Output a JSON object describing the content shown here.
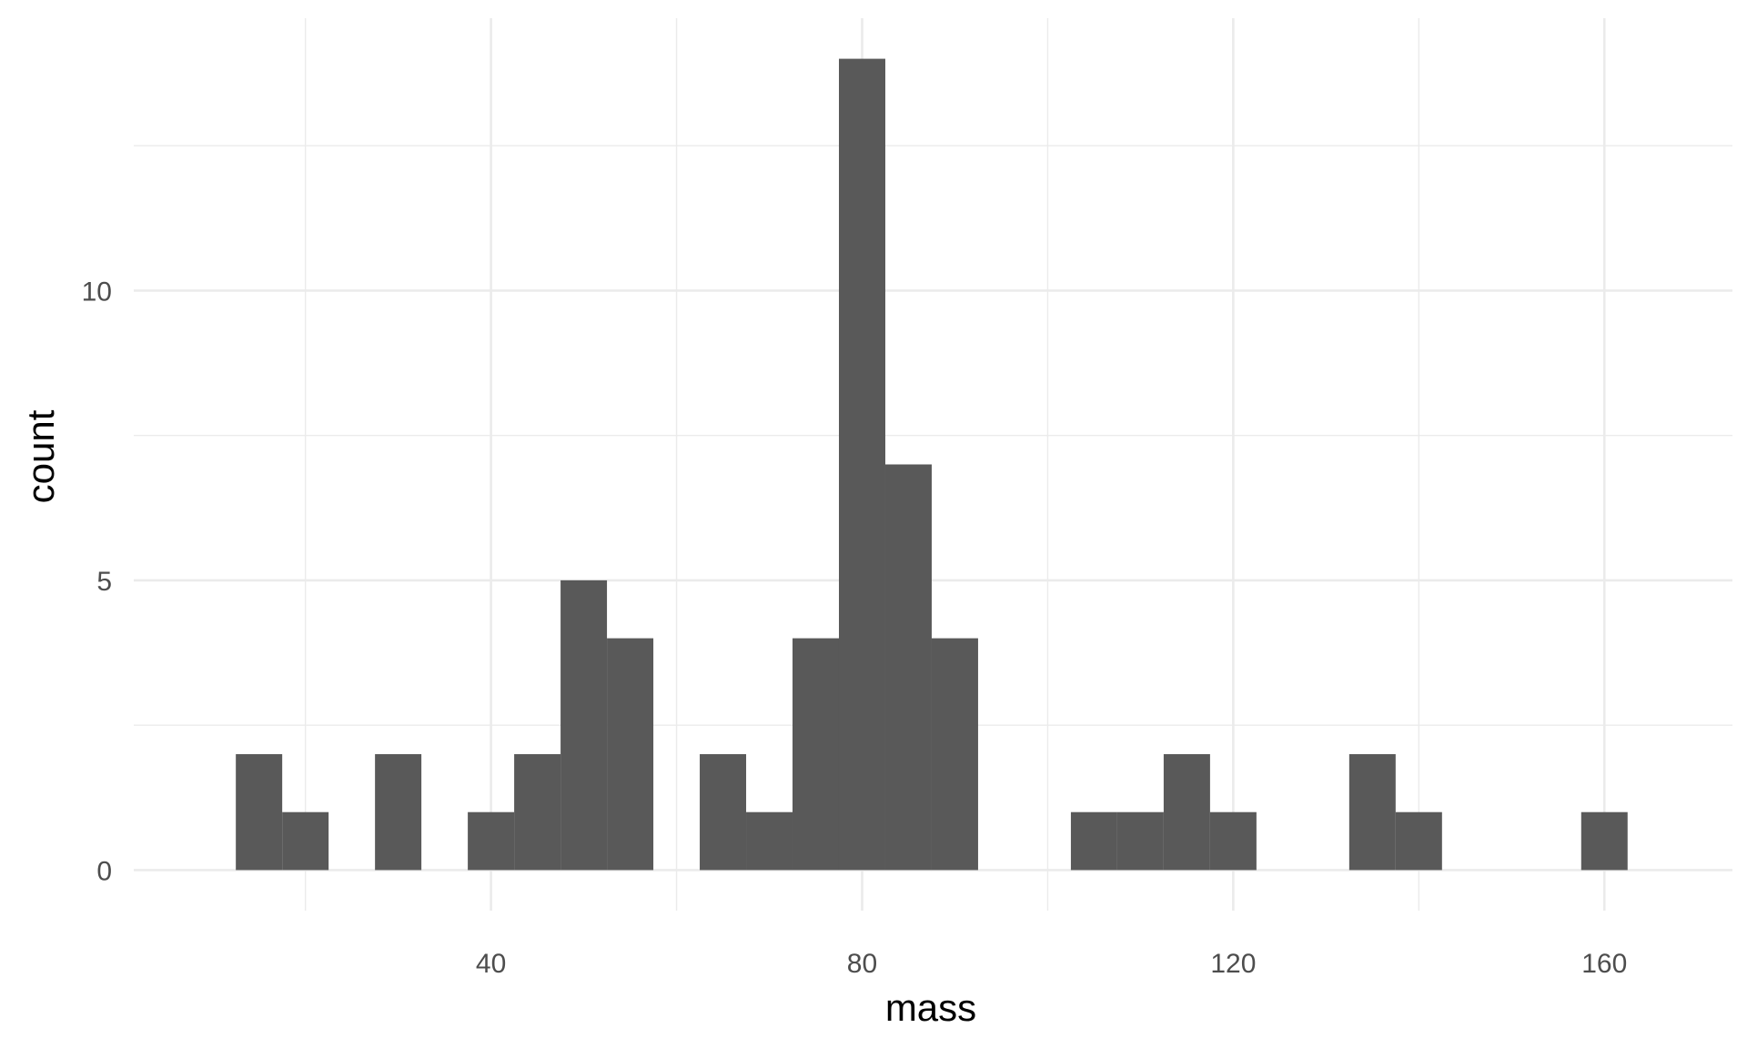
{
  "chart_data": {
    "type": "bar",
    "chart_kind": "histogram",
    "xlabel": "mass",
    "ylabel": "count",
    "x_ticks": [
      40,
      80,
      120,
      160
    ],
    "x_tick_labels": [
      "40",
      "80",
      "120",
      "160"
    ],
    "y_ticks": [
      0,
      5,
      10
    ],
    "y_tick_labels": [
      "0",
      "5",
      "10"
    ],
    "xlim": [
      1.5,
      173.8
    ],
    "ylim": [
      -0.7,
      14.7
    ],
    "bin_width": 5,
    "bins": [
      {
        "x0": 12.5,
        "x1": 17.5,
        "count": 2
      },
      {
        "x0": 17.5,
        "x1": 22.5,
        "count": 1
      },
      {
        "x0": 27.5,
        "x1": 32.5,
        "count": 2
      },
      {
        "x0": 37.5,
        "x1": 42.5,
        "count": 1
      },
      {
        "x0": 42.5,
        "x1": 47.5,
        "count": 2
      },
      {
        "x0": 47.5,
        "x1": 52.5,
        "count": 5
      },
      {
        "x0": 52.5,
        "x1": 57.5,
        "count": 4
      },
      {
        "x0": 62.5,
        "x1": 67.5,
        "count": 2
      },
      {
        "x0": 67.5,
        "x1": 72.5,
        "count": 1
      },
      {
        "x0": 72.5,
        "x1": 77.5,
        "count": 4
      },
      {
        "x0": 77.5,
        "x1": 82.5,
        "count": 14
      },
      {
        "x0": 82.5,
        "x1": 87.5,
        "count": 7
      },
      {
        "x0": 87.5,
        "x1": 92.5,
        "count": 4
      },
      {
        "x0": 102.5,
        "x1": 107.5,
        "count": 1
      },
      {
        "x0": 107.5,
        "x1": 112.5,
        "count": 1
      },
      {
        "x0": 112.5,
        "x1": 117.5,
        "count": 2
      },
      {
        "x0": 117.5,
        "x1": 122.5,
        "count": 1
      },
      {
        "x0": 132.5,
        "x1": 137.5,
        "count": 2
      },
      {
        "x0": 137.5,
        "x1": 142.5,
        "count": 1
      },
      {
        "x0": 157.5,
        "x1": 162.5,
        "count": 1
      }
    ],
    "bar_color": "#595959",
    "grid": true,
    "legend": "none"
  }
}
